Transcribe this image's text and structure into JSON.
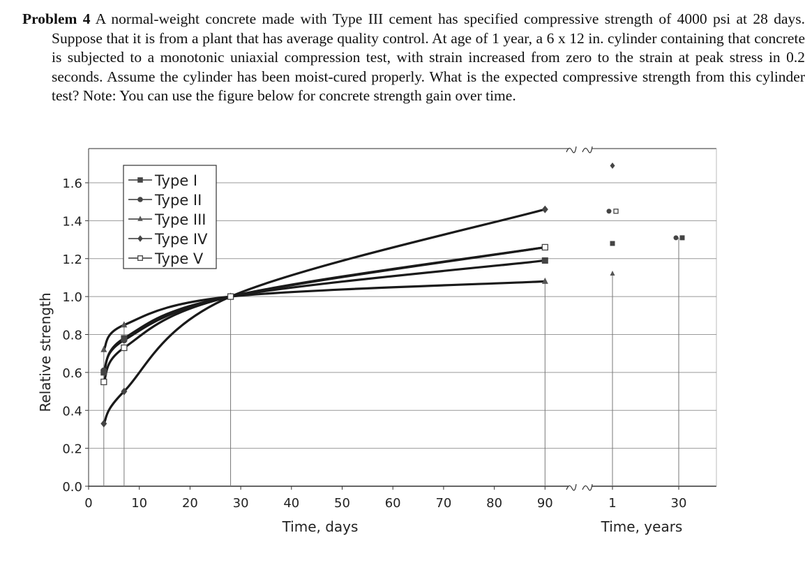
{
  "problem": {
    "label": "Problem 4",
    "text": "A normal-weight concrete made with Type III cement has specified compressive strength of 4000 psi at 28 days. Suppose that it is from a plant that has average quality control. At age of 1 year, a 6 x 12 in. cylinder containing that concrete is subjected to a monotonic uniaxial compression test, with strain increased from zero to the strain at peak stress in 0.2 seconds. Assume the cylinder has been moist-cured properly. What is the expected compressive strength from this cylinder test? Note: You can use the figure below for concrete strength gain over time."
  },
  "chart_data": {
    "type": "line",
    "ylabel": "Relative strength",
    "xlabel_days": "Time, days",
    "xlabel_years": "Time, years",
    "y_ticks": [
      "0.0",
      "0.2",
      "0.4",
      "0.6",
      "0.8",
      "1.0",
      "1.2",
      "1.4",
      "1.6"
    ],
    "x_ticks_days": [
      "0",
      "10",
      "20",
      "30",
      "40",
      "50",
      "60",
      "70",
      "80",
      "90"
    ],
    "x_ticks_years": [
      "1",
      "30"
    ],
    "xlim_days": [
      0,
      90
    ],
    "ylim": [
      0,
      1.7
    ],
    "grid": true,
    "legend_position": "top-left",
    "series": [
      {
        "name": "Type I",
        "marker": "square",
        "days": [
          3,
          7,
          28,
          90
        ],
        "values": [
          0.6,
          0.78,
          1.0,
          1.19
        ],
        "year1": 1.28,
        "year30": 1.31
      },
      {
        "name": "Type II",
        "marker": "circle",
        "days": [
          3,
          7,
          28,
          90
        ],
        "values": [
          0.61,
          0.77,
          1.0,
          1.26
        ],
        "year1": 1.45,
        "year30": 1.31
      },
      {
        "name": "Type III",
        "marker": "triangle",
        "days": [
          3,
          7,
          28,
          90
        ],
        "values": [
          0.72,
          0.85,
          1.0,
          1.08
        ],
        "year1": 1.12,
        "year30": null
      },
      {
        "name": "Type IV",
        "marker": "diamond",
        "days": [
          3,
          7,
          28,
          90
        ],
        "values": [
          0.33,
          0.5,
          1.0,
          1.46
        ],
        "year1": 1.69,
        "year30": null
      },
      {
        "name": "Type V",
        "marker": "open-square",
        "days": [
          3,
          7,
          28,
          90
        ],
        "values": [
          0.55,
          0.73,
          1.0,
          1.26
        ],
        "year1": 1.45,
        "year30": null
      }
    ]
  }
}
